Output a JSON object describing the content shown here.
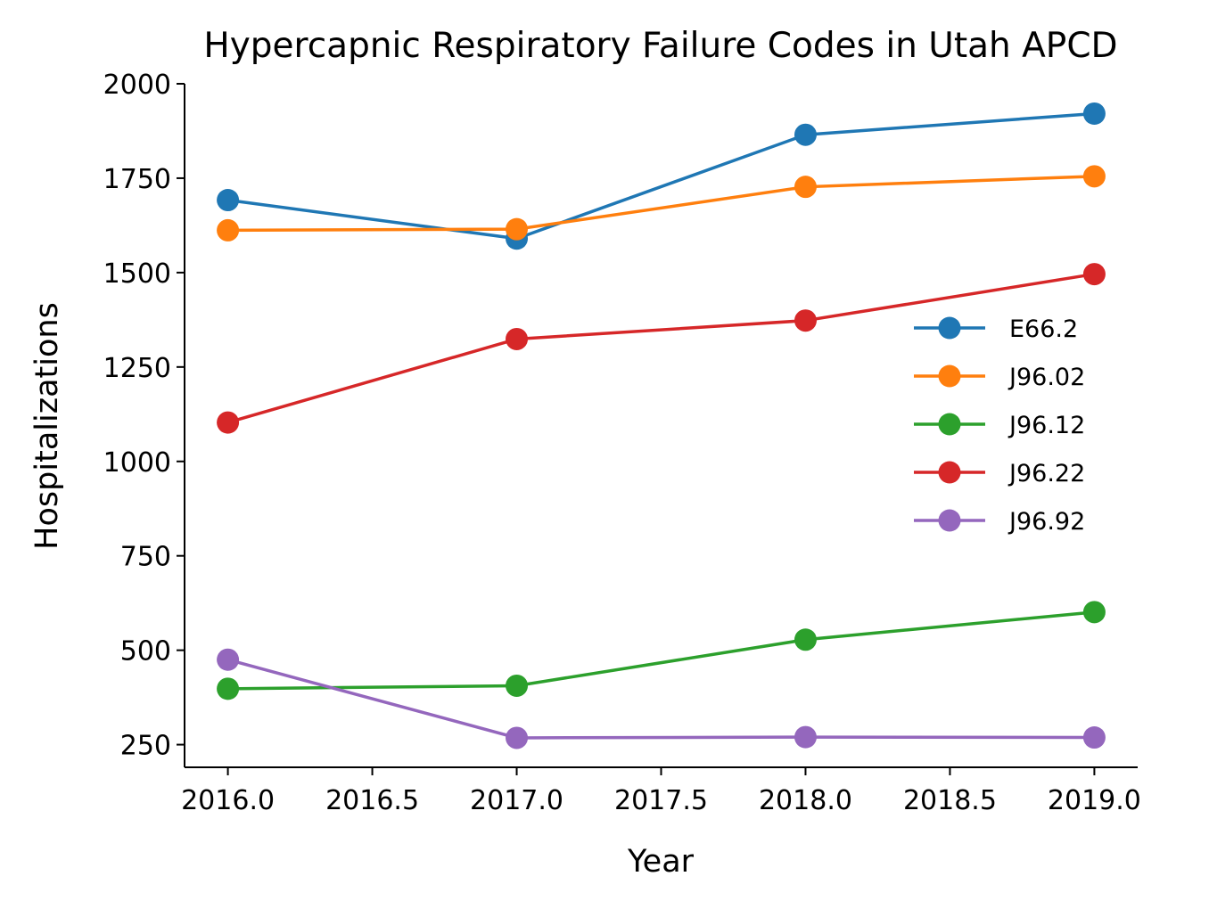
{
  "chart_data": {
    "type": "line",
    "title": "Hypercapnic Respiratory Failure Codes in Utah APCD",
    "xlabel": "Year",
    "ylabel": "Hospitalizations",
    "x": [
      2016,
      2017,
      2018,
      2019
    ],
    "xlim": [
      2015.85,
      2019.15
    ],
    "ylim": [
      190,
      2000
    ],
    "xticks": [
      "2016.0",
      "2016.5",
      "2017.0",
      "2017.5",
      "2018.0",
      "2018.5",
      "2019.0"
    ],
    "yticks": [
      "250",
      "500",
      "750",
      "1000",
      "1250",
      "1500",
      "1750",
      "2000"
    ],
    "grid": false,
    "legend_position": "center-right",
    "series": [
      {
        "name": "E66.2",
        "color": "#1f77b4",
        "values": [
          1692,
          1590,
          1865,
          1921
        ]
      },
      {
        "name": "J96.02",
        "color": "#ff7f0e",
        "values": [
          1612,
          1615,
          1727,
          1755
        ]
      },
      {
        "name": "J96.12",
        "color": "#2ca02c",
        "values": [
          398,
          406,
          528,
          601
        ]
      },
      {
        "name": "J96.22",
        "color": "#d62728",
        "values": [
          1103,
          1324,
          1373,
          1496
        ]
      },
      {
        "name": "J96.92",
        "color": "#9467bd",
        "values": [
          475,
          268,
          270,
          269
        ]
      }
    ]
  }
}
